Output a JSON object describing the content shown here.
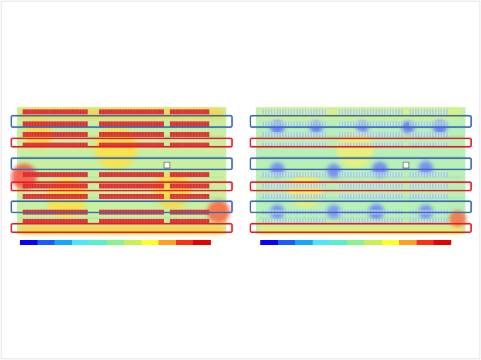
{
  "panels": [
    {
      "id": "left",
      "scenario": "hot",
      "highlight_colors": {
        "row_a": "#3a6cb4",
        "row_b": "#e21f26"
      }
    },
    {
      "id": "right",
      "scenario": "cool",
      "highlight_colors": {
        "row_a": "#3a6cb4",
        "row_b": "#e21f26"
      }
    }
  ],
  "legend": {
    "colors": [
      "#0a00ff",
      "#1a5cff",
      "#12a8ff",
      "#4ee6ff",
      "#58f0c8",
      "#8cf28c",
      "#c8f250",
      "#ffff20",
      "#ffa020",
      "#ff3010",
      "#e80000"
    ],
    "ticks": [
      "",
      "",
      "",
      "",
      "",
      "",
      "",
      "",
      "",
      "",
      ""
    ]
  },
  "palette": {
    "background": "#ffffff",
    "frame_border": "#d4d4d4",
    "field_base": "#b9f0a0"
  }
}
